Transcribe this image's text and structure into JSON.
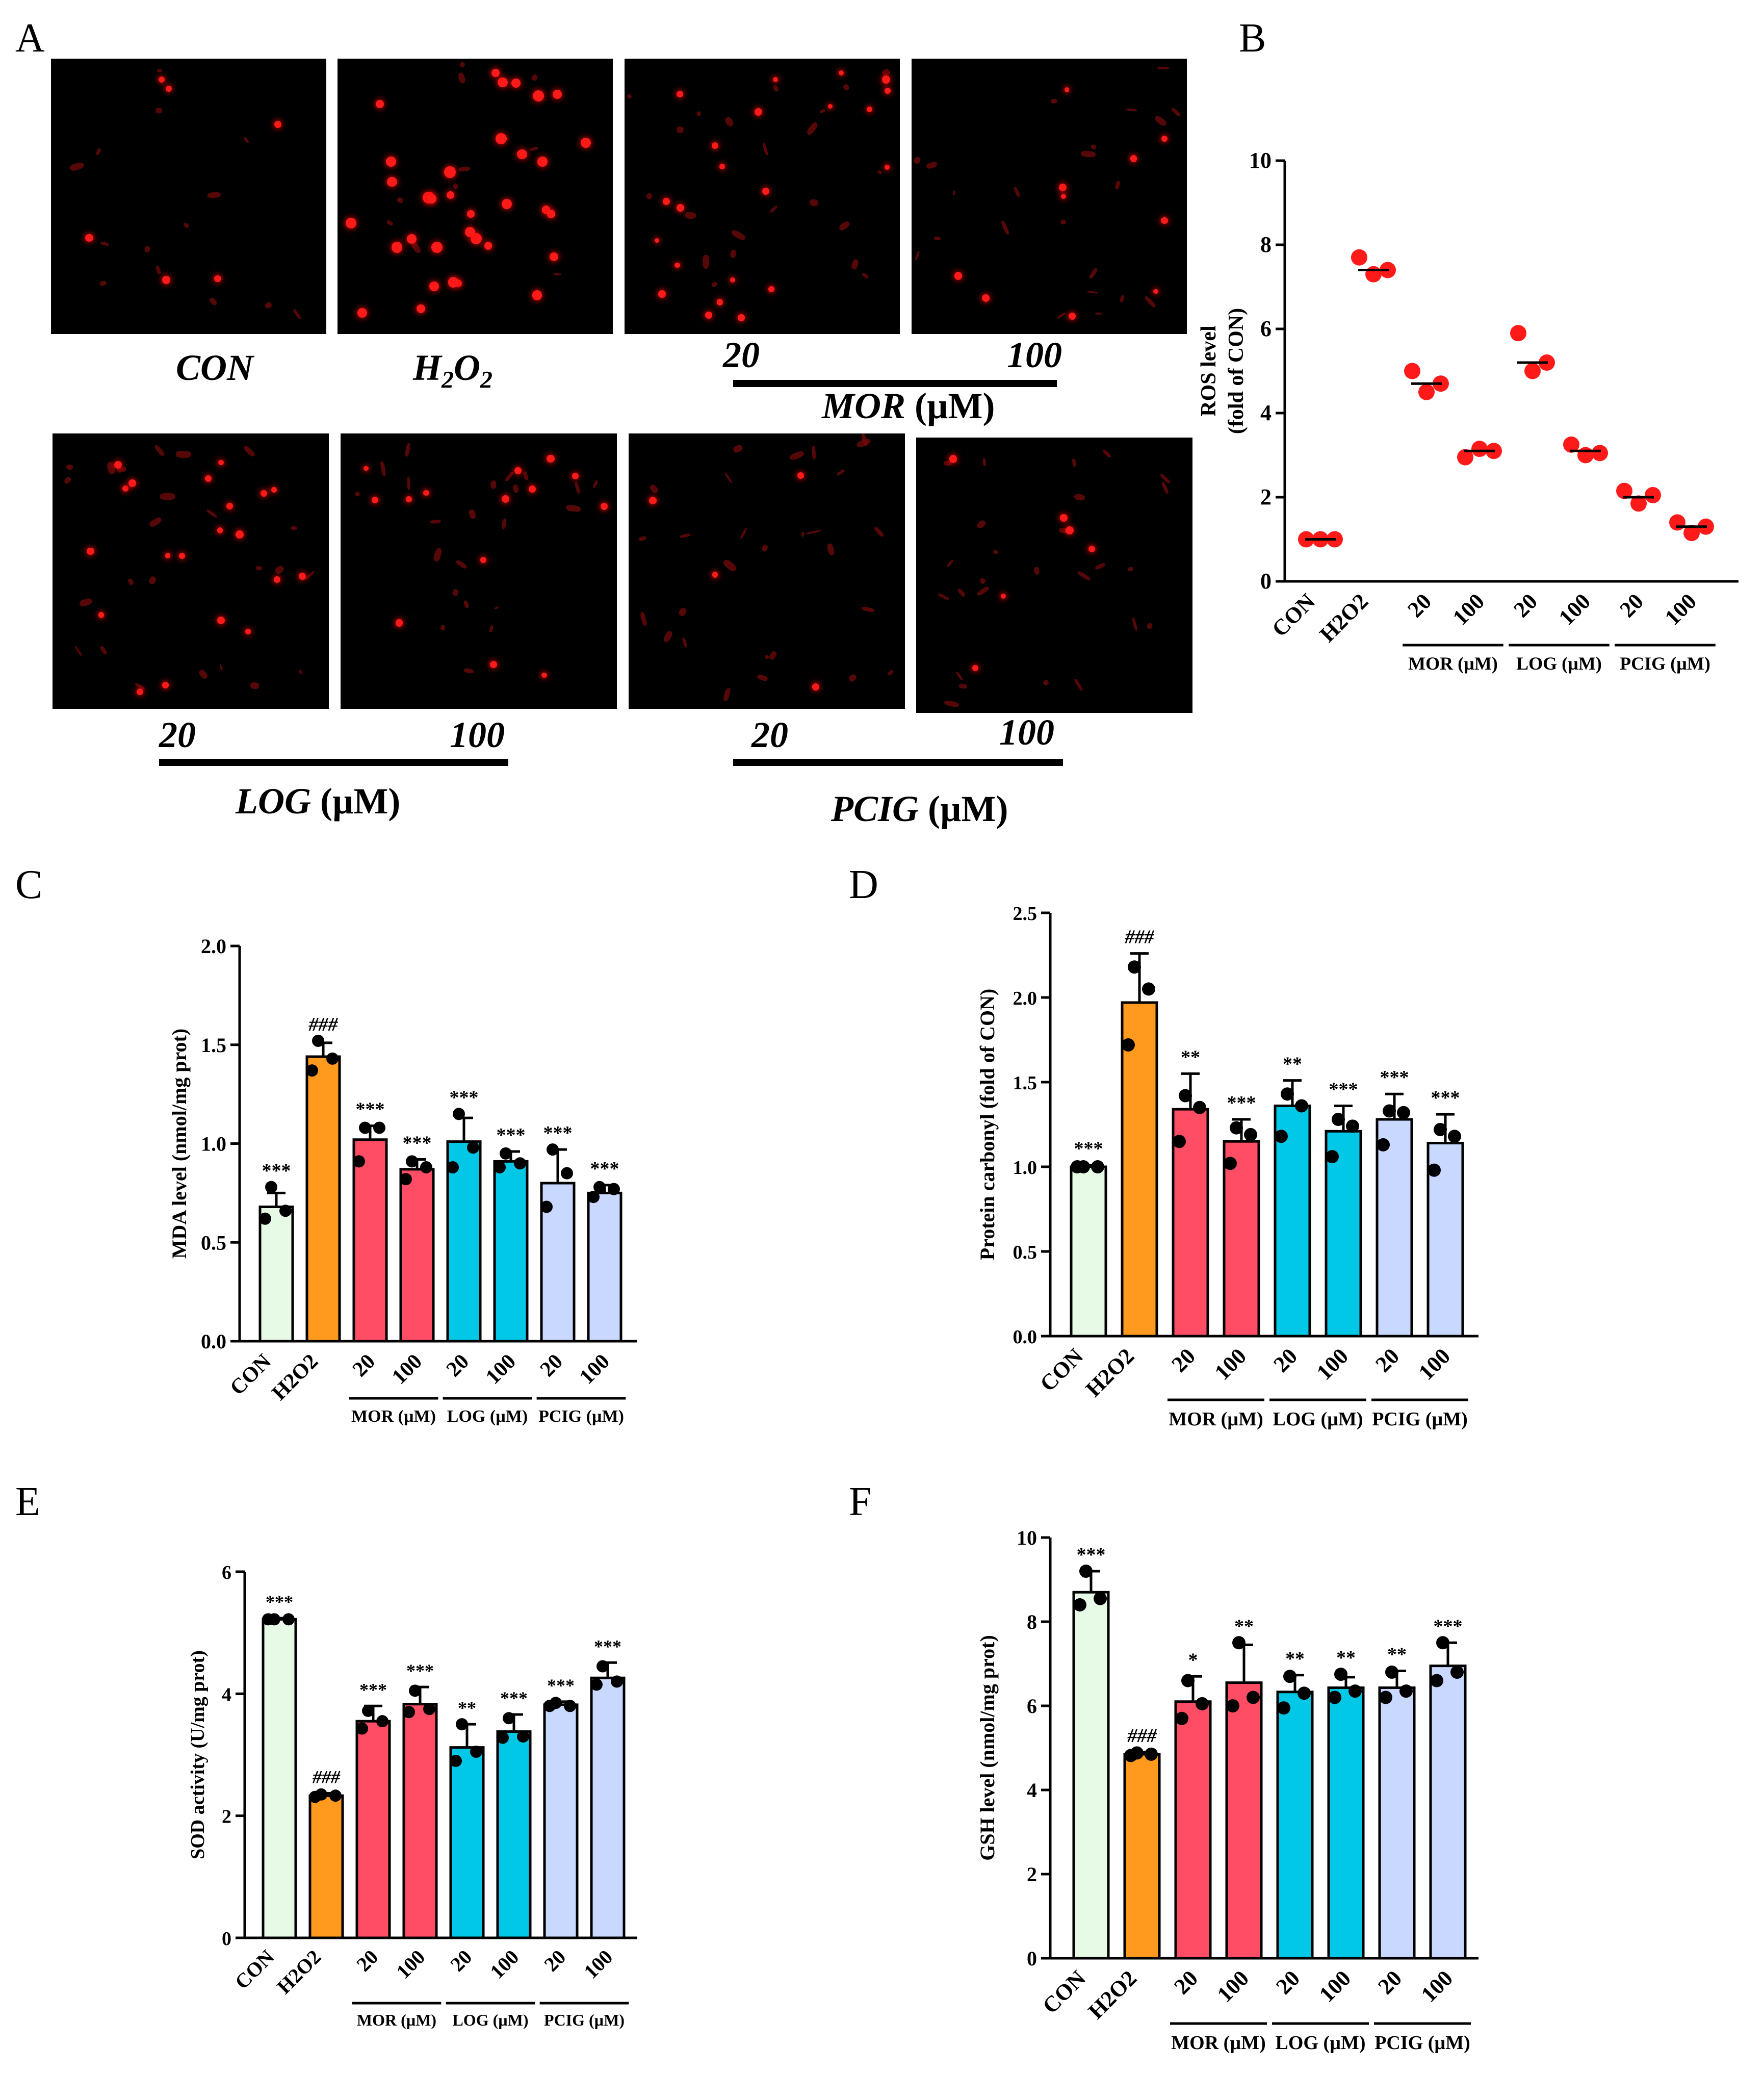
{
  "panels": {
    "A": "A",
    "B": "B",
    "C": "C",
    "D": "D",
    "E": "E",
    "F": "F"
  },
  "micrographs": {
    "con": "CON",
    "h2o2_main": "H",
    "h2o2_sub1": "2",
    "h2o2_mid": "O",
    "h2o2_sub2": "2",
    "mor_low": "20",
    "mor_high": "100",
    "mor_name": "MOR",
    "mor_unit": "(µM)",
    "log_low": "20",
    "log_high": "100",
    "log_name": "LOG",
    "log_unit": "(µM)",
    "pcig_low": "20",
    "pcig_high": "100",
    "pcig_name": "PCIG",
    "pcig_unit": "(µM)"
  },
  "colors": {
    "con": "#e6fae6",
    "h2o2": "#ff9a1f",
    "mor": "#ff4d66",
    "log": "#00c8e6",
    "pcig": "#c8d8ff",
    "ros": "#ff1a1a"
  },
  "chart_data": [
    {
      "id": "B",
      "type": "scatter",
      "ylabel_line1": "ROS level",
      "ylabel_line2": "(fold of CON)",
      "categories": [
        "CON",
        "H2O2",
        "20",
        "100",
        "20",
        "100",
        "20",
        "100"
      ],
      "groups": [
        {
          "label": "MOR (µM)"
        },
        {
          "label": "LOG (µM)"
        },
        {
          "label": "PCIG (µM)"
        }
      ],
      "ylim": [
        0,
        10
      ],
      "yticks": [
        "0",
        "2",
        "4",
        "6",
        "8",
        "10"
      ],
      "means": [
        1.0,
        7.4,
        4.7,
        3.1,
        5.2,
        3.1,
        2.0,
        1.3
      ],
      "points": [
        [
          1.0,
          1.0,
          1.0
        ],
        [
          7.7,
          7.3,
          7.4
        ],
        [
          5.0,
          4.5,
          4.7
        ],
        [
          2.95,
          3.15,
          3.1
        ],
        [
          5.9,
          5.0,
          5.2
        ],
        [
          3.25,
          3.0,
          3.05
        ],
        [
          2.15,
          1.85,
          2.05
        ],
        [
          1.4,
          1.15,
          1.3
        ]
      ]
    },
    {
      "id": "C",
      "type": "bar",
      "ylabel": "MDA level (nmol/mg prot)",
      "categories": [
        "CON",
        "H2O2",
        "20",
        "100",
        "20",
        "100",
        "20",
        "100"
      ],
      "groups": [
        {
          "label": "MOR (µM)"
        },
        {
          "label": "LOG (µM)"
        },
        {
          "label": "PCIG (µM)"
        }
      ],
      "ylim": [
        0,
        2.0
      ],
      "yticks": [
        "0.0",
        "0.5",
        "1.0",
        "1.5",
        "2.0"
      ],
      "values": [
        0.68,
        1.44,
        1.02,
        0.87,
        1.01,
        0.91,
        0.8,
        0.75
      ],
      "errors": [
        0.07,
        0.07,
        0.07,
        0.05,
        0.12,
        0.05,
        0.17,
        0.04
      ],
      "points": [
        [
          0.78,
          0.66,
          0.62
        ],
        [
          1.52,
          1.43,
          1.37
        ],
        [
          1.08,
          1.08,
          0.91
        ],
        [
          0.91,
          0.88,
          0.82
        ],
        [
          1.15,
          0.98,
          0.88
        ],
        [
          0.95,
          0.9,
          0.88
        ],
        [
          0.97,
          0.85,
          0.68
        ],
        [
          0.78,
          0.77,
          0.73
        ]
      ],
      "sig": [
        "***",
        "###",
        "***",
        "***",
        "***",
        "***",
        "***",
        "***"
      ]
    },
    {
      "id": "D",
      "type": "bar",
      "ylabel": "Protein carbonyl (fold of CON)",
      "categories": [
        "CON",
        "H2O2",
        "20",
        "100",
        "20",
        "100",
        "20",
        "100"
      ],
      "groups": [
        {
          "label": "MOR (µM)"
        },
        {
          "label": "LOG (µM)"
        },
        {
          "label": "PCIG (µM)"
        }
      ],
      "ylim": [
        0,
        2.5
      ],
      "yticks": [
        "0.0",
        "0.5",
        "1.0",
        "1.5",
        "2.0",
        "2.5"
      ],
      "values": [
        1.0,
        1.97,
        1.34,
        1.15,
        1.36,
        1.21,
        1.28,
        1.14
      ],
      "errors": [
        0.01,
        0.29,
        0.21,
        0.13,
        0.15,
        0.15,
        0.15,
        0.17
      ],
      "points": [
        [
          1.0,
          1.0,
          1.0
        ],
        [
          2.18,
          2.05,
          1.72
        ],
        [
          1.42,
          1.35,
          1.15
        ],
        [
          1.23,
          1.19,
          1.02
        ],
        [
          1.43,
          1.36,
          1.18
        ],
        [
          1.28,
          1.24,
          1.06
        ],
        [
          1.33,
          1.32,
          1.13
        ],
        [
          1.22,
          1.18,
          0.98
        ]
      ],
      "sig": [
        "***",
        "###",
        "**",
        "***",
        "**",
        "***",
        "***",
        "***"
      ]
    },
    {
      "id": "E",
      "type": "bar",
      "ylabel": "SOD activity (U/mg prot)",
      "categories": [
        "CON",
        "H2O2",
        "20",
        "100",
        "20",
        "100",
        "20",
        "100"
      ],
      "groups": [
        {
          "label": "MOR (µM)"
        },
        {
          "label": "LOG (µM)"
        },
        {
          "label": "PCIG (µM)"
        }
      ],
      "ylim": [
        0,
        6
      ],
      "yticks": [
        "0",
        "2",
        "4",
        "6"
      ],
      "values": [
        5.22,
        2.33,
        3.55,
        3.83,
        3.12,
        3.38,
        3.82,
        4.26
      ],
      "errors": [
        0.02,
        0.04,
        0.25,
        0.28,
        0.38,
        0.28,
        0.05,
        0.25
      ],
      "points": [
        [
          5.22,
          5.22,
          5.22
        ],
        [
          2.35,
          2.33,
          2.31
        ],
        [
          3.72,
          3.55,
          3.43
        ],
        [
          4.05,
          3.75,
          3.7
        ],
        [
          3.5,
          3.05,
          2.9
        ],
        [
          3.6,
          3.3,
          3.28
        ],
        [
          3.85,
          3.8,
          3.8
        ],
        [
          4.45,
          4.2,
          4.15
        ]
      ],
      "sig": [
        "***",
        "###",
        "***",
        "***",
        "**",
        "***",
        "***",
        "***"
      ]
    },
    {
      "id": "F",
      "type": "bar",
      "ylabel": "GSH level (nmol/mg prot)",
      "categories": [
        "CON",
        "H2O2",
        "20",
        "100",
        "20",
        "100",
        "20",
        "100"
      ],
      "groups": [
        {
          "label": "MOR (µM)"
        },
        {
          "label": "LOG (µM)"
        },
        {
          "label": "PCIG (µM)"
        }
      ],
      "ylim": [
        0,
        10
      ],
      "yticks": [
        "0",
        "2",
        "4",
        "6",
        "8",
        "10"
      ],
      "values": [
        8.7,
        4.85,
        6.1,
        6.55,
        6.33,
        6.43,
        6.43,
        6.95
      ],
      "errors": [
        0.5,
        0.05,
        0.6,
        0.9,
        0.4,
        0.25,
        0.4,
        0.55
      ],
      "points": [
        [
          9.2,
          8.55,
          8.4
        ],
        [
          4.88,
          4.85,
          4.82
        ],
        [
          6.6,
          6.05,
          5.7
        ],
        [
          7.5,
          6.2,
          6.0
        ],
        [
          6.7,
          6.3,
          5.95
        ],
        [
          6.75,
          6.35,
          6.2
        ],
        [
          6.8,
          6.35,
          6.2
        ],
        [
          7.5,
          6.8,
          6.6
        ]
      ],
      "sig": [
        "***",
        "###",
        "*",
        "**",
        "**",
        "**",
        "**",
        "***"
      ]
    }
  ]
}
